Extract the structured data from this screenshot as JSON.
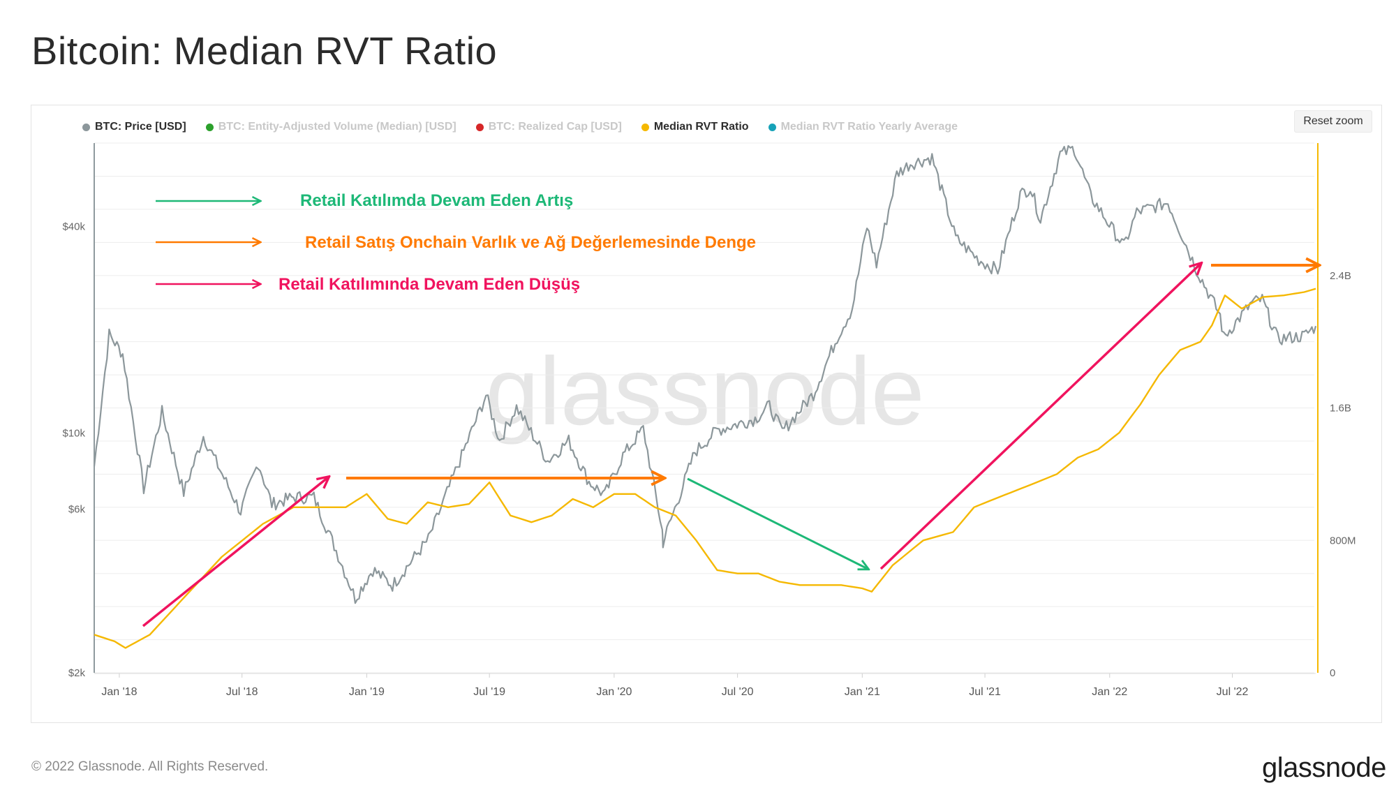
{
  "page": {
    "title": "Bitcoin: Median RVT Ratio",
    "copyright": "© 2022 Glassnode. All Rights Reserved.",
    "logo_text": "glassnode",
    "watermark": "glassnode"
  },
  "toolbar": {
    "reset_zoom_label": "Reset zoom"
  },
  "legend": [
    {
      "label": "BTC: Price [USD]",
      "color": "#8c979b",
      "active": true
    },
    {
      "label": "BTC: Entity-Adjusted Volume (Median) [USD]",
      "color": "#2ca02c",
      "active": false
    },
    {
      "label": "BTC: Realized Cap [USD]",
      "color": "#d62728",
      "active": false
    },
    {
      "label": "Median RVT Ratio",
      "color": "#f5b800",
      "active": true
    },
    {
      "label": "Median RVT Ratio Yearly Average",
      "color": "#17a2b8",
      "active": false
    }
  ],
  "annotations": [
    {
      "label": "Retail Katılımda Devam Eden Artış",
      "color": "#1db877"
    },
    {
      "label": "Retail Satış Onchain Varlık ve Ağ Değerlemesinde Denge",
      "color": "#ff7a00"
    },
    {
      "label": "Retail Katılımında Devam Eden Düşüş",
      "color": "#f0135e"
    }
  ],
  "chart_data": {
    "type": "line",
    "x_ticks": [
      "Jan '18",
      "Jul '18",
      "Jan '19",
      "Jul '19",
      "Jan '20",
      "Jul '20",
      "Jan '21",
      "Jul '21",
      "Jan '22",
      "Jul '22"
    ],
    "x_range": [
      "2017-11-25",
      "2022-11-01"
    ],
    "y_left": {
      "scale": "log",
      "ticks": [
        "$2k",
        "$6k",
        "$10k",
        "$40k"
      ],
      "tick_values": [
        2000,
        6000,
        10000,
        40000
      ],
      "range": [
        2000,
        70000
      ]
    },
    "y_right": {
      "scale": "linear",
      "ticks": [
        "0",
        "800M",
        "1.6B",
        "2.4B"
      ],
      "tick_values": [
        0,
        800000000,
        1600000000,
        2400000000
      ],
      "range": [
        0,
        3200000000
      ]
    },
    "series": [
      {
        "name": "BTC: Price [USD]",
        "color": "#8c979b",
        "axis": "left",
        "x": [
          "2017-11-25",
          "2017-12-17",
          "2018-01-06",
          "2018-02-06",
          "2018-03-05",
          "2018-04-06",
          "2018-05-05",
          "2018-06-29",
          "2018-07-25",
          "2018-08-14",
          "2018-09-15",
          "2018-10-15",
          "2018-11-20",
          "2018-12-15",
          "2019-01-10",
          "2019-02-08",
          "2019-04-02",
          "2019-05-15",
          "2019-06-26",
          "2019-07-16",
          "2019-08-10",
          "2019-09-25",
          "2019-10-26",
          "2019-11-25",
          "2019-12-18",
          "2020-01-14",
          "2020-02-13",
          "2020-03-12",
          "2020-03-13",
          "2020-04-29",
          "2020-06-01",
          "2020-07-27",
          "2020-08-17",
          "2020-09-05",
          "2020-10-21",
          "2020-11-25",
          "2020-12-17",
          "2021-01-08",
          "2021-01-22",
          "2021-02-21",
          "2021-03-13",
          "2021-04-14",
          "2021-05-19",
          "2021-06-22",
          "2021-07-20",
          "2021-08-22",
          "2021-09-06",
          "2021-09-21",
          "2021-10-20",
          "2021-11-10",
          "2021-12-04",
          "2022-01-22",
          "2022-02-10",
          "2022-03-28",
          "2022-05-09",
          "2022-06-13",
          "2022-06-18",
          "2022-07-30",
          "2022-08-14",
          "2022-09-06",
          "2022-10-15",
          "2022-11-01"
        ],
        "y": [
          8000,
          19400,
          17000,
          6900,
          11500,
          6700,
          9800,
          5900,
          8200,
          6200,
          6500,
          6500,
          4400,
          3300,
          4000,
          3600,
          4900,
          8000,
          12900,
          9500,
          11900,
          8300,
          9500,
          7200,
          6600,
          8600,
          10300,
          5200,
          4800,
          8800,
          10200,
          11000,
          12000,
          10100,
          13000,
          19000,
          23000,
          40000,
          31000,
          57000,
          61000,
          63500,
          37000,
          32000,
          29800,
          49500,
          52000,
          42000,
          65000,
          67500,
          49000,
          35000,
          44000,
          47000,
          30000,
          22000,
          19000,
          24000,
          24500,
          18800,
          19200,
          20500
        ]
      },
      {
        "name": "Median RVT Ratio",
        "color": "#f5b800",
        "axis": "right",
        "x": [
          "2017-11-25",
          "2017-12-25",
          "2018-01-10",
          "2018-02-15",
          "2018-04-01",
          "2018-06-01",
          "2018-08-01",
          "2018-09-15",
          "2018-11-01",
          "2018-12-01",
          "2019-01-01",
          "2019-02-01",
          "2019-03-01",
          "2019-04-01",
          "2019-05-01",
          "2019-06-01",
          "2019-07-01",
          "2019-08-01",
          "2019-09-01",
          "2019-10-01",
          "2019-11-01",
          "2019-12-01",
          "2020-01-01",
          "2020-02-01",
          "2020-03-01",
          "2020-04-01",
          "2020-05-01",
          "2020-06-01",
          "2020-07-01",
          "2020-08-01",
          "2020-09-01",
          "2020-10-01",
          "2020-11-01",
          "2020-12-01",
          "2021-01-01",
          "2021-01-15",
          "2021-02-15",
          "2021-04-01",
          "2021-05-15",
          "2021-06-15",
          "2021-07-15",
          "2021-08-15",
          "2021-09-15",
          "2021-10-15",
          "2021-11-15",
          "2021-12-15",
          "2022-01-15",
          "2022-02-15",
          "2022-03-15",
          "2022-04-15",
          "2022-05-15",
          "2022-06-01",
          "2022-06-20",
          "2022-07-15",
          "2022-08-15",
          "2022-09-15",
          "2022-10-15",
          "2022-11-01"
        ],
        "y": [
          230000000,
          190000000,
          150000000,
          230000000,
          430000000,
          700000000,
          900000000,
          1000000000,
          1000000000,
          1000000000,
          1080000000,
          930000000,
          900000000,
          1030000000,
          1000000000,
          1020000000,
          1150000000,
          950000000,
          910000000,
          950000000,
          1050000000,
          1000000000,
          1080000000,
          1080000000,
          1000000000,
          950000000,
          800000000,
          620000000,
          600000000,
          600000000,
          550000000,
          530000000,
          530000000,
          530000000,
          510000000,
          490000000,
          650000000,
          800000000,
          850000000,
          1000000000,
          1050000000,
          1100000000,
          1150000000,
          1200000000,
          1300000000,
          1350000000,
          1450000000,
          1620000000,
          1800000000,
          1950000000,
          2000000000,
          2100000000,
          2280000000,
          2200000000,
          2270000000,
          2280000000,
          2300000000,
          2320000000
        ]
      }
    ],
    "grid": true,
    "legend_position": "top-left"
  }
}
